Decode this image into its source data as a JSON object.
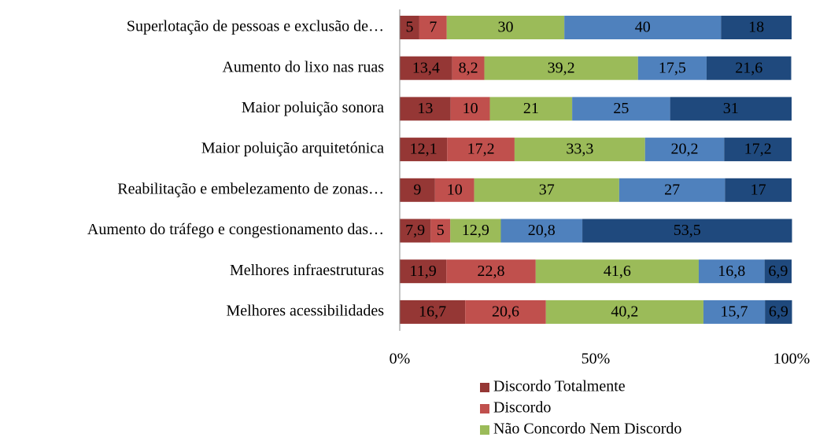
{
  "chart_data": {
    "type": "stacked_bar_horizontal",
    "categories": [
      "Superlotação de pessoas e exclusão de…",
      "Aumento do lixo nas ruas",
      "Maior poluição sonora",
      "Maior poluição arquitetónica",
      "Reabilitação e embelezamento de zonas…",
      "Aumento do tráfego e congestionamento das…",
      "Melhores infraestruturas",
      "Melhores acessibilidades"
    ],
    "series": [
      {
        "name": "Discordo Totalmente",
        "color": "#953735",
        "values": [
          5,
          13.4,
          13,
          12.1,
          9,
          7.9,
          11.9,
          16.7
        ],
        "value_labels": [
          "5",
          "13,4",
          "13",
          "12,1",
          "9",
          "7,9",
          "11,9",
          "16,7"
        ]
      },
      {
        "name": "Discordo",
        "color": "#c0504d",
        "values": [
          7,
          8.2,
          10,
          17.2,
          10,
          5,
          22.8,
          20.6
        ],
        "value_labels": [
          "7",
          "8,2",
          "10",
          "17,2",
          "10",
          "5",
          "22,8",
          "20,6"
        ]
      },
      {
        "name": "Não Concordo Nem Discordo",
        "color": "#9bbb59",
        "values": [
          30,
          39.2,
          21,
          33.3,
          37,
          12.9,
          41.6,
          40.2
        ],
        "value_labels": [
          "30",
          "39,2",
          "21",
          "33,3",
          "37",
          "12,9",
          "41,6",
          "40,2"
        ]
      },
      {
        "color": "#4f81bd",
        "values": [
          40,
          17.5,
          25,
          20.2,
          27,
          20.8,
          16.8,
          15.7
        ],
        "value_labels": [
          "40",
          "17,5",
          "25",
          "20,2",
          "27",
          "20,8",
          "16,8",
          "15,7"
        ]
      },
      {
        "color": "#1f497d",
        "values": [
          18,
          21.6,
          31,
          17.2,
          17,
          53.5,
          6.9,
          6.9
        ],
        "value_labels": [
          "18",
          "21,6",
          "31",
          "17,2",
          "17",
          "53,5",
          "6,9",
          "6,9"
        ]
      }
    ],
    "xlim": [
      0,
      100
    ],
    "xticks": [
      {
        "value": 0,
        "label": "0%"
      },
      {
        "value": 50,
        "label": "50%"
      },
      {
        "value": 100,
        "label": "100%"
      }
    ]
  }
}
